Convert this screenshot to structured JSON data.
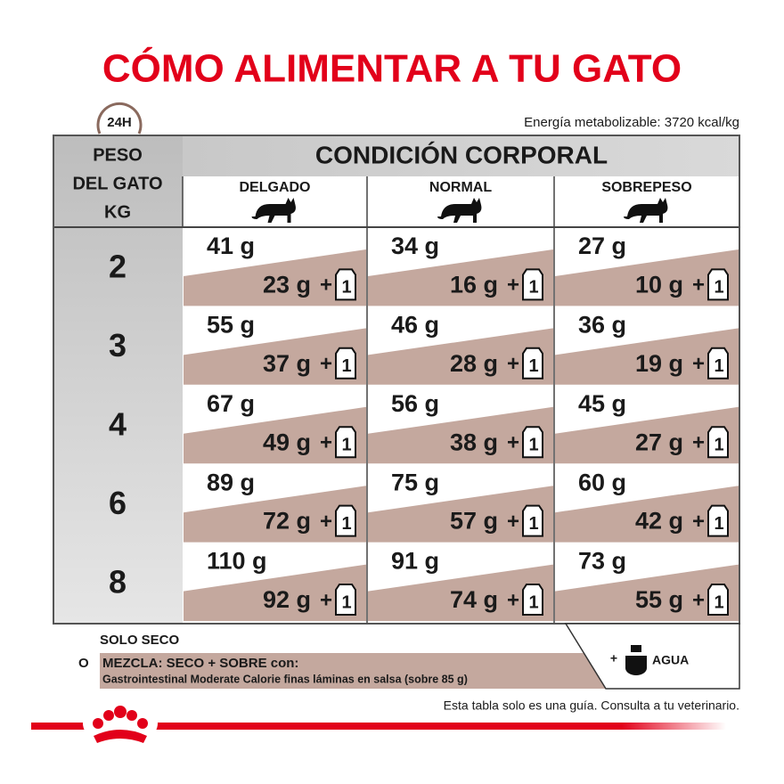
{
  "header": {
    "title": "CÓMO ALIMENTAR A TU GATO",
    "badge": "24H",
    "energy": "Energía metabolizable: 3720 kcal/kg"
  },
  "table": {
    "weight_header": [
      "PESO",
      "DEL GATO",
      "KG"
    ],
    "condition_header": "CONDICIÓN CORPORAL",
    "columns": [
      "DELGADO",
      "NORMAL",
      "SOBREPESO"
    ],
    "plus": "+",
    "pouch": "1",
    "rows": [
      {
        "weight": "2",
        "cells": [
          {
            "dry": "41 g",
            "mix": "23 g"
          },
          {
            "dry": "34 g",
            "mix": "16 g"
          },
          {
            "dry": "27 g",
            "mix": "10 g"
          }
        ]
      },
      {
        "weight": "3",
        "cells": [
          {
            "dry": "55 g",
            "mix": "37 g"
          },
          {
            "dry": "46 g",
            "mix": "28 g"
          },
          {
            "dry": "36 g",
            "mix": "19 g"
          }
        ]
      },
      {
        "weight": "4",
        "cells": [
          {
            "dry": "67 g",
            "mix": "49 g"
          },
          {
            "dry": "56 g",
            "mix": "38 g"
          },
          {
            "dry": "45 g",
            "mix": "27 g"
          }
        ]
      },
      {
        "weight": "6",
        "cells": [
          {
            "dry": "89 g",
            "mix": "72 g"
          },
          {
            "dry": "75 g",
            "mix": "57 g"
          },
          {
            "dry": "60 g",
            "mix": "42 g"
          }
        ]
      },
      {
        "weight": "8",
        "cells": [
          {
            "dry": "110 g",
            "mix": "92 g"
          },
          {
            "dry": "91 g",
            "mix": "74 g"
          },
          {
            "dry": "73 g",
            "mix": "55 g"
          }
        ]
      }
    ]
  },
  "legend": {
    "dry_only": "SOLO SECO",
    "or": "O",
    "mix": "MEZCLA: SECO + SOBRE con:",
    "product": "Gastrointestinal Moderate Calorie finas láminas en salsa (sobre 85 g)",
    "water": "AGUA"
  },
  "footer": {
    "note": "Esta tabla solo es una guía. Consulta a tu veterinario."
  }
}
